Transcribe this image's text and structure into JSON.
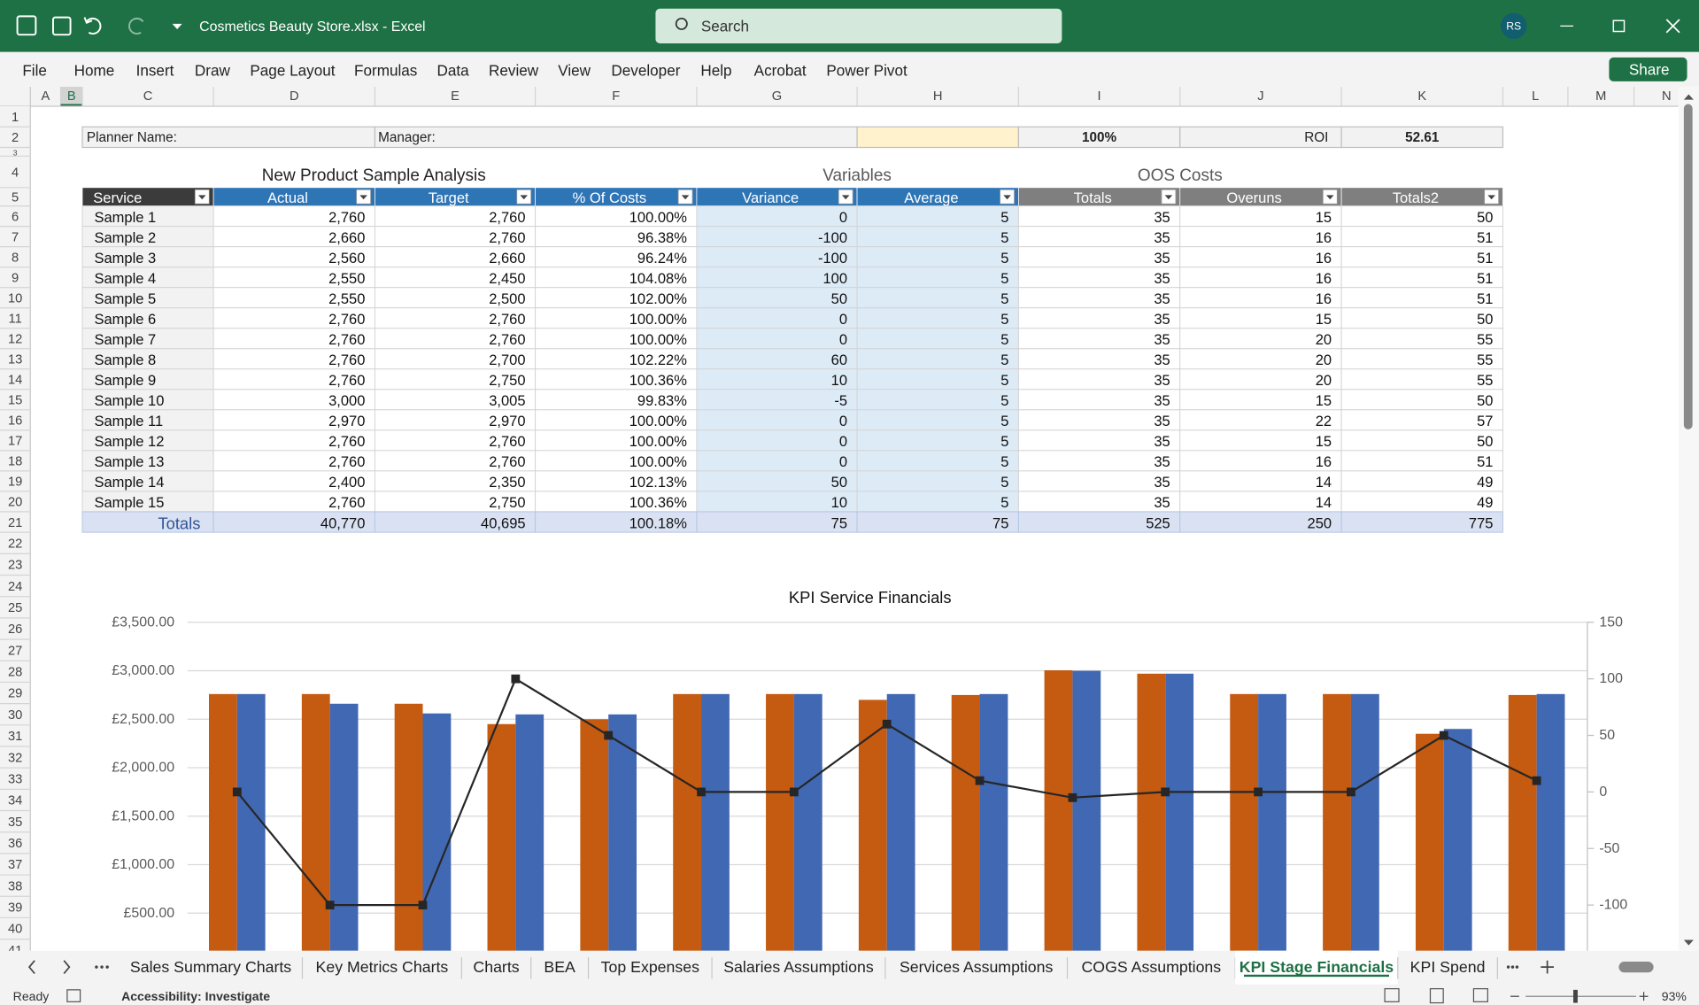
{
  "title_bar": {
    "file_name": "Cosmetics Beauty Store.xlsx  -  Excel",
    "search": "Search",
    "user": "RS"
  },
  "menu": {
    "items": [
      "File",
      "Home",
      "Insert",
      "Draw",
      "Page Layout",
      "Formulas",
      "Data",
      "Review",
      "View",
      "Developer",
      "Help",
      "Acrobat",
      "Power Pivot"
    ],
    "share": "Share"
  },
  "columns": [
    "A",
    "B",
    "C",
    "D",
    "E",
    "F",
    "G",
    "H",
    "I",
    "J",
    "K",
    "L",
    "M",
    "N"
  ],
  "rows": [
    1,
    2,
    3,
    4,
    5,
    6,
    7,
    8,
    9,
    10,
    11,
    12,
    13,
    14,
    15,
    16,
    17,
    18,
    19,
    20,
    21,
    22,
    23,
    24,
    25,
    26,
    27,
    28,
    29,
    30,
    31,
    32,
    33,
    34,
    35,
    36,
    37,
    38,
    39,
    40,
    41
  ],
  "sheet": {
    "planner_label": "Planner Name:",
    "manager_label": "Manager:",
    "completion": "100%",
    "roi_label": "ROI",
    "roi_value": "52.61"
  },
  "table": {
    "groups": [
      "New Product Sample Analysis",
      "Variables",
      "OOS Costs"
    ],
    "headers": [
      "Service",
      "Actual",
      "Target",
      "% Of Costs",
      "Variance",
      "Average",
      "Totals",
      "Overuns",
      "Totals2"
    ],
    "rows": [
      [
        "Sample 1",
        "2,760",
        "2,760",
        "100.00%",
        "0",
        "5",
        "35",
        "15",
        "50"
      ],
      [
        "Sample 2",
        "2,660",
        "2,760",
        "96.38%",
        "-100",
        "5",
        "35",
        "16",
        "51"
      ],
      [
        "Sample 3",
        "2,560",
        "2,660",
        "96.24%",
        "-100",
        "5",
        "35",
        "16",
        "51"
      ],
      [
        "Sample 4",
        "2,550",
        "2,450",
        "104.08%",
        "100",
        "5",
        "35",
        "16",
        "51"
      ],
      [
        "Sample 5",
        "2,550",
        "2,500",
        "102.00%",
        "50",
        "5",
        "35",
        "16",
        "51"
      ],
      [
        "Sample 6",
        "2,760",
        "2,760",
        "100.00%",
        "0",
        "5",
        "35",
        "15",
        "50"
      ],
      [
        "Sample 7",
        "2,760",
        "2,760",
        "100.00%",
        "0",
        "5",
        "35",
        "20",
        "55"
      ],
      [
        "Sample 8",
        "2,760",
        "2,700",
        "102.22%",
        "60",
        "5",
        "35",
        "20",
        "55"
      ],
      [
        "Sample 9",
        "2,760",
        "2,750",
        "100.36%",
        "10",
        "5",
        "35",
        "20",
        "55"
      ],
      [
        "Sample 10",
        "3,000",
        "3,005",
        "99.83%",
        "-5",
        "5",
        "35",
        "15",
        "50"
      ],
      [
        "Sample 11",
        "2,970",
        "2,970",
        "100.00%",
        "0",
        "5",
        "35",
        "22",
        "57"
      ],
      [
        "Sample 12",
        "2,760",
        "2,760",
        "100.00%",
        "0",
        "5",
        "35",
        "15",
        "50"
      ],
      [
        "Sample 13",
        "2,760",
        "2,760",
        "100.00%",
        "0",
        "5",
        "35",
        "16",
        "51"
      ],
      [
        "Sample 14",
        "2,400",
        "2,350",
        "102.13%",
        "50",
        "5",
        "35",
        "14",
        "49"
      ],
      [
        "Sample 15",
        "2,760",
        "2,750",
        "100.36%",
        "10",
        "5",
        "35",
        "14",
        "49"
      ]
    ],
    "totals": [
      "Totals",
      "40,770",
      "40,695",
      "100.18%",
      "75",
      "75",
      "525",
      "250",
      "775"
    ]
  },
  "chart": {
    "type": "combo",
    "title": "KPI Service Financials",
    "series": [
      {
        "type": "bar",
        "color": "#c55a11",
        "values": [
          2760,
          2760,
          2660,
          2450,
          2500,
          2760,
          2760,
          2700,
          2750,
          3005,
          2970,
          2760,
          2760,
          2350,
          2750
        ]
      },
      {
        "type": "bar",
        "color": "#4168b2",
        "values": [
          2760,
          2660,
          2560,
          2550,
          2550,
          2760,
          2760,
          2760,
          2760,
          3000,
          2970,
          2760,
          2760,
          2400,
          2760
        ]
      },
      {
        "type": "line",
        "axis": "y2",
        "color": "#262626",
        "values": [
          0,
          -100,
          -100,
          100,
          50,
          0,
          0,
          60,
          10,
          -5,
          0,
          0,
          0,
          50,
          10
        ]
      }
    ],
    "ylim": [
      0,
      3500
    ],
    "yticks": [
      {
        "value": 500,
        "label": "£500.00"
      },
      {
        "value": 1000,
        "label": "£1,000.00"
      },
      {
        "value": 1500,
        "label": "£1,500.00"
      },
      {
        "value": 2000,
        "label": "£2,000.00"
      },
      {
        "value": 2500,
        "label": "£2,500.00"
      },
      {
        "value": 3000,
        "label": "£3,000.00"
      },
      {
        "value": 3500,
        "label": "£3,500.00"
      }
    ],
    "y2lim": [
      -150,
      150
    ],
    "y2ticks": [
      150,
      100,
      50,
      0,
      -50,
      -100
    ],
    "grid": true
  },
  "tabs": {
    "items": [
      "Sales Summary Charts",
      "Key Metrics Charts",
      "Charts",
      "BEA",
      "Top Expenses",
      "Salaries Assumptions",
      "Services Assumptions",
      "COGS Assumptions",
      "KPI Stage Financials",
      "KPI Spend"
    ],
    "active": 8
  },
  "status": {
    "ready": "Ready",
    "accessibility": "Accessibility: Investigate",
    "zoom": "93%"
  }
}
